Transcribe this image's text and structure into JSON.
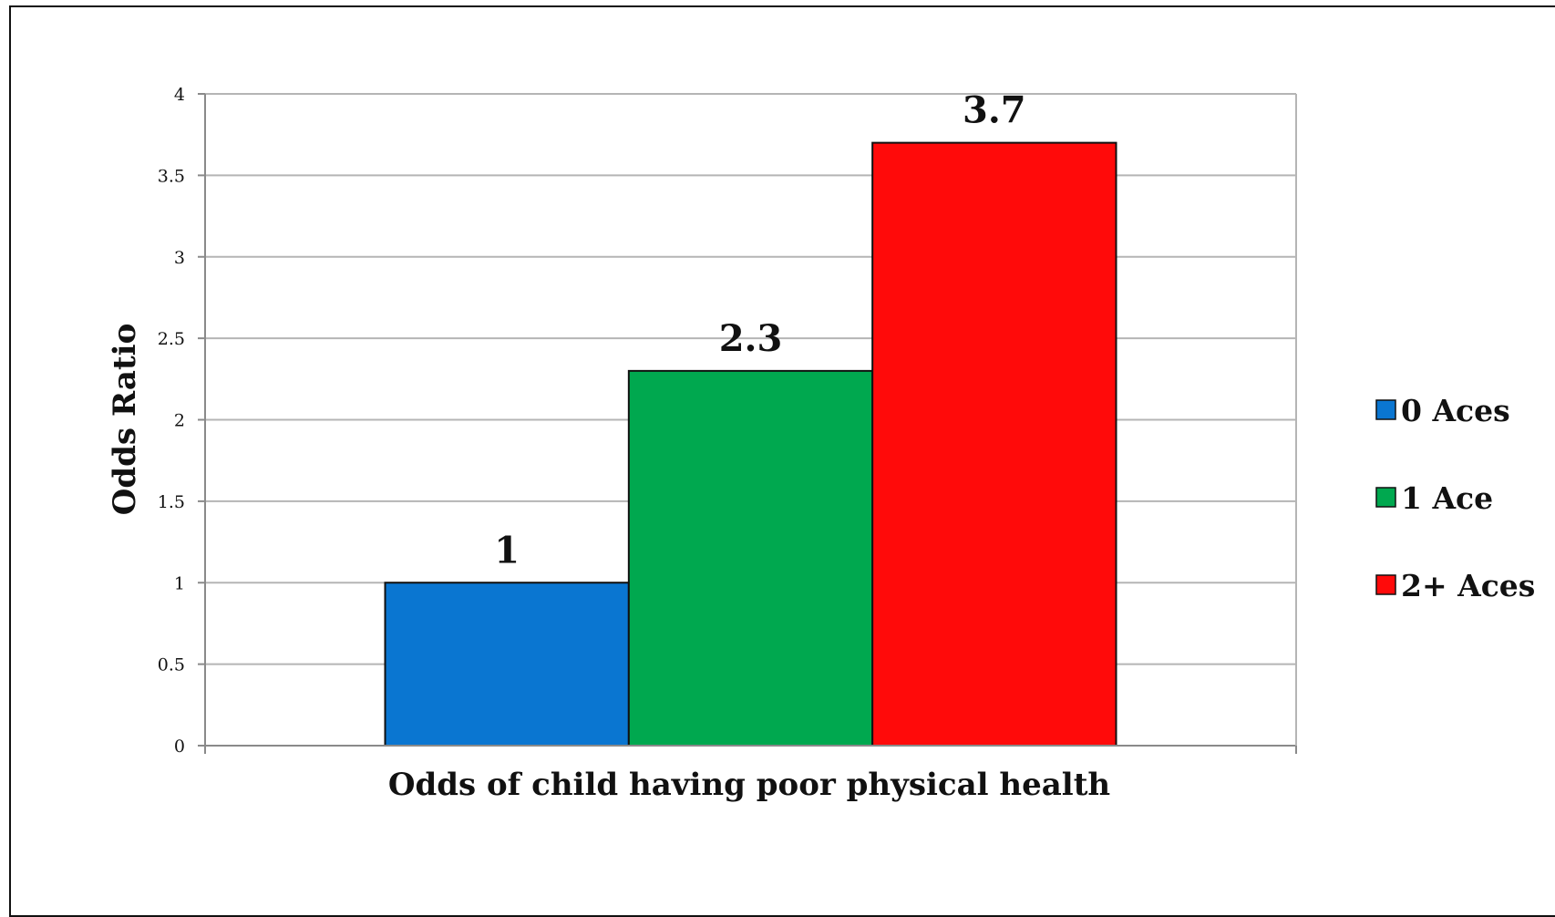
{
  "chart_data": {
    "type": "bar",
    "categories": [
      "Odds of child having poor physical health"
    ],
    "series": [
      {
        "name": "0 Aces",
        "values": [
          1
        ],
        "color": "#0a76d1",
        "data_label": "1"
      },
      {
        "name": "1 Ace",
        "values": [
          2.3
        ],
        "color": "#00a84f",
        "data_label": "2.3"
      },
      {
        "name": "2+ Aces",
        "values": [
          3.7
        ],
        "color": "#ff0a0a",
        "data_label": "3.7"
      }
    ],
    "xlabel": "Odds of child having poor physical health",
    "ylabel": "Odds Ratio",
    "ylim": [
      0,
      4
    ],
    "yticks": [
      "0",
      "0.5",
      "1",
      "1.5",
      "2",
      "2.5",
      "3",
      "3.5",
      "4"
    ],
    "grid": true,
    "legend_position": "right"
  }
}
